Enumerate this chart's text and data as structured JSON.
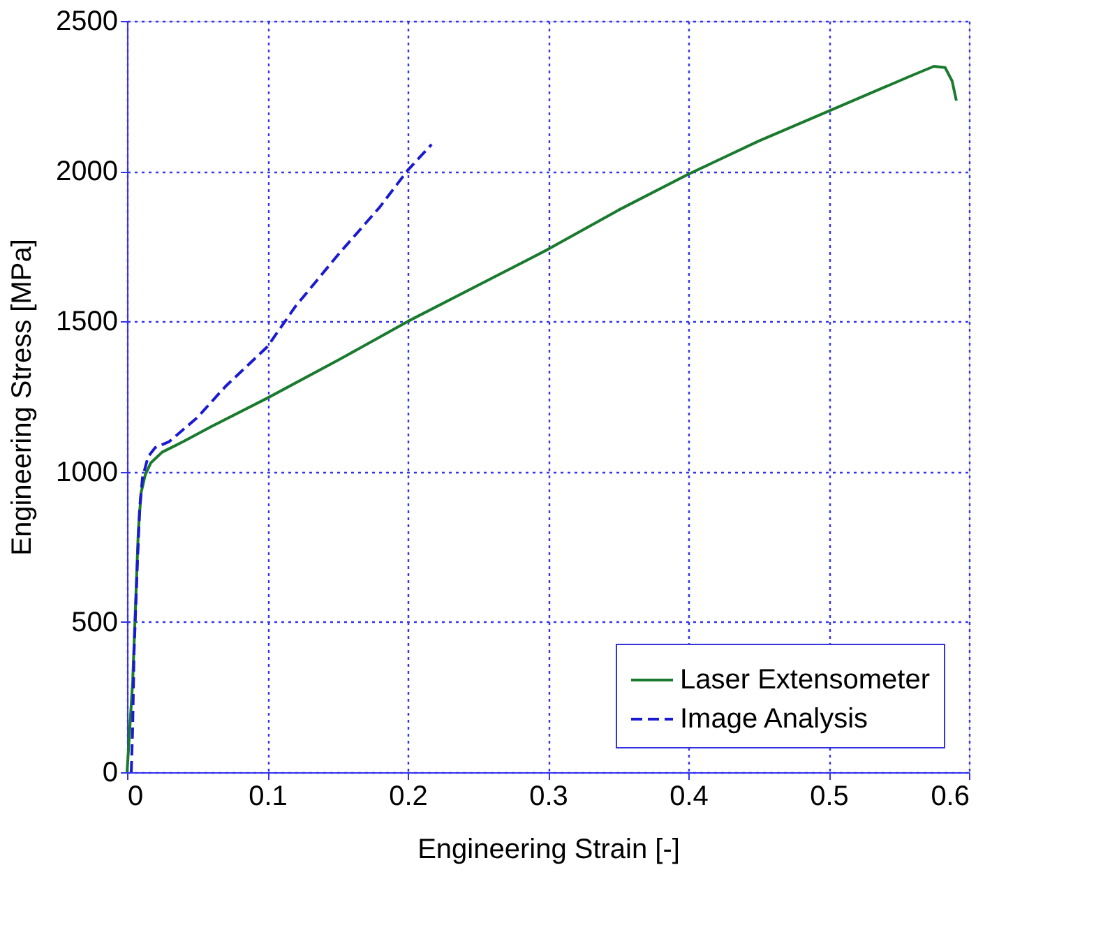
{
  "chart_data": {
    "type": "line",
    "xlabel": "Engineering Strain [-]",
    "ylabel": "Engineering Stress [MPa]",
    "xlim": [
      0,
      0.6
    ],
    "xticks": [
      0,
      0.1,
      0.2,
      0.3,
      0.4,
      0.5,
      0.6
    ],
    "ylim": [
      0,
      2500
    ],
    "yticks": [
      0,
      500,
      1000,
      1500,
      2000,
      2500
    ],
    "grid": true,
    "legend": "bottom right",
    "marker": "none",
    "series": [
      {
        "name": "Laser Extensometer",
        "color": "#1a7a2e",
        "line_style": "solid",
        "x": [
          0,
          0.004,
          0.006,
          0.008,
          0.01,
          0.013,
          0.017,
          0.025,
          0.04,
          0.06,
          0.1,
          0.15,
          0.2,
          0.25,
          0.3,
          0.35,
          0.4,
          0.45,
          0.5,
          0.54,
          0.56,
          0.575,
          0.583,
          0.588,
          0.591
        ],
        "values": [
          0,
          300,
          550,
          800,
          930,
          990,
          1030,
          1065,
          1100,
          1150,
          1245,
          1370,
          1500,
          1620,
          1740,
          1870,
          1990,
          2100,
          2200,
          2280,
          2320,
          2349,
          2345,
          2300,
          2235
        ]
      },
      {
        "name": "Image Analysis",
        "color": "#1a1ad0",
        "line_style": "dashed",
        "x": [
          0.003,
          0.004,
          0.005,
          0.007,
          0.009,
          0.011,
          0.015,
          0.02,
          0.03,
          0.05,
          0.07,
          0.1,
          0.12,
          0.15,
          0.18,
          0.2,
          0.217
        ],
        "values": [
          0,
          150,
          400,
          650,
          880,
          980,
          1050,
          1080,
          1100,
          1180,
          1283,
          1416,
          1550,
          1720,
          1880,
          2003,
          2089
        ]
      }
    ]
  }
}
